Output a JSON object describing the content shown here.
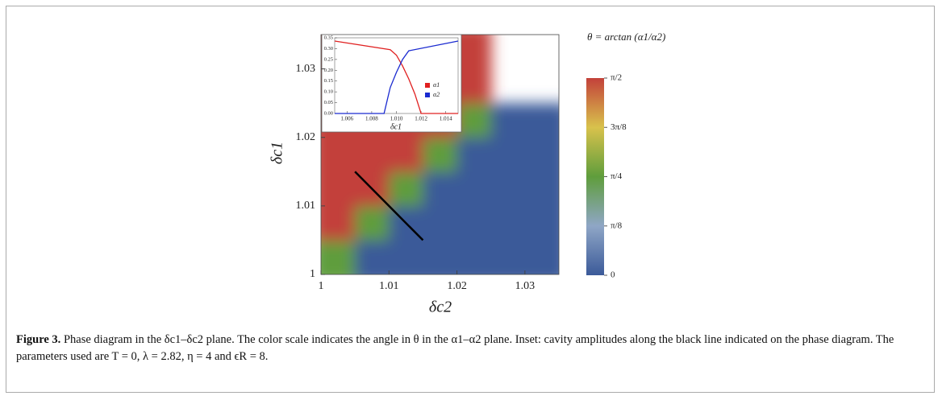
{
  "chart_data": [
    {
      "type": "heatmap",
      "xlabel": "δc2",
      "ylabel": "δc1",
      "colorbar_title": "θ = arctan (α1/α2)",
      "x": [
        1.0025,
        1.0075,
        1.0125,
        1.0175,
        1.0225,
        1.0275,
        1.0325
      ],
      "y": [
        1.0025,
        1.0075,
        1.0125,
        1.0175,
        1.0225,
        1.0275,
        1.0325
      ],
      "z": [
        [
          0.785,
          0,
          0,
          0,
          0,
          0,
          0
        ],
        [
          1.571,
          0.785,
          0,
          0,
          0,
          0,
          0
        ],
        [
          1.571,
          1.571,
          0.785,
          0,
          0,
          0,
          0
        ],
        [
          1.571,
          1.571,
          1.571,
          0.785,
          0,
          0,
          0
        ],
        [
          1.571,
          1.571,
          1.571,
          1.571,
          0.785,
          0,
          0
        ],
        [
          1.571,
          1.571,
          1.571,
          1.571,
          1.571,
          null,
          null
        ],
        [
          1.571,
          1.571,
          1.571,
          1.571,
          1.571,
          null,
          null
        ]
      ],
      "xlim": [
        1,
        1.035
      ],
      "ylim": [
        1,
        1.035
      ],
      "xticks": [
        1,
        1.01,
        1.02,
        1.03
      ],
      "yticks": [
        1,
        1.01,
        1.02,
        1.03
      ],
      "zlim": [
        0,
        1.5708
      ],
      "zticks": [
        0,
        {
          "value": 0.3927,
          "label": "π/8"
        },
        {
          "value": 0.7854,
          "label": "π/4"
        },
        {
          "value": 1.1781,
          "label": "3π/8"
        },
        {
          "value": 1.5708,
          "label": "π/2"
        }
      ],
      "colors": [
        "#3b5a99",
        "#8fa6c6",
        "#5f9d3c",
        "#d8c24c",
        "#c3413a"
      ],
      "line_segment": {
        "color": "#000000",
        "x": [
          1.005,
          1.015
        ],
        "y": [
          1.015,
          1.005
        ]
      }
    },
    {
      "type": "line",
      "xlabel": "δc1",
      "series": [
        {
          "name": "α1",
          "color": "#e02020",
          "x": [
            1.005,
            1.0095,
            1.01,
            1.0105,
            1.011,
            1.0115,
            1.012,
            1.015
          ],
          "values": [
            0.335,
            0.295,
            0.27,
            0.22,
            0.16,
            0.09,
            0,
            0
          ]
        },
        {
          "name": "α2",
          "color": "#1a2ad0",
          "x": [
            1.005,
            1.009,
            1.0095,
            1.01,
            1.0105,
            1.011,
            1.015
          ],
          "values": [
            0,
            0,
            0.12,
            0.19,
            0.25,
            0.29,
            0.335
          ]
        }
      ],
      "xlim": [
        1.005,
        1.015
      ],
      "ylim": [
        0,
        0.35
      ],
      "xticks": [
        1.006,
        1.008,
        {
          "value": 1.01,
          "label": "1.010"
        },
        1.012,
        1.014
      ],
      "yticks": [
        {
          "value": 0,
          "label": "0.00"
        },
        0.05,
        {
          "value": 0.1,
          "label": "0.10"
        },
        0.15,
        {
          "value": 0.2,
          "label": "0.20"
        },
        0.25,
        {
          "value": 0.3,
          "label": "0.30"
        },
        0.35
      ]
    }
  ],
  "caption": {
    "label": "Figure 3.",
    "text": "Phase diagram in the δc1–δc2 plane. The color scale indicates the angle in θ in the α1–α2 plane. Inset: cavity amplitudes along the black line indicated on the phase diagram. The parameters used are T = 0, λ = 2.82, η = 4 and ϵR = 8."
  }
}
